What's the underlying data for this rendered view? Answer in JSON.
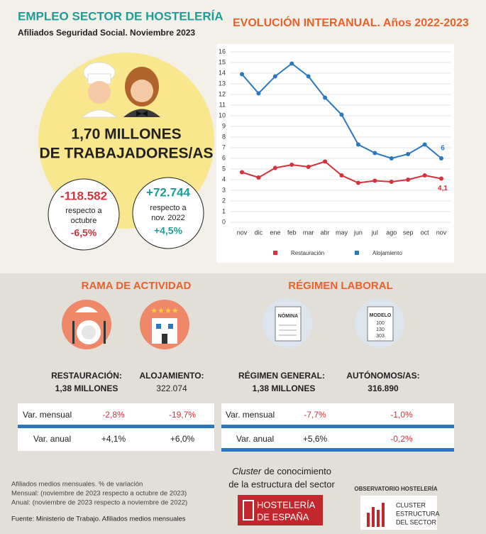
{
  "header": {
    "title": "EMPLEO SECTOR DE HOSTELERÍA",
    "subtitle": "Afiliados Seguridad Social. Noviembre 2023"
  },
  "highlight": {
    "line1": "1,70 MILLONES",
    "line2": "DE TRABAJADORES/AS",
    "monthly": {
      "value": "-118.582",
      "text1": "respecto a",
      "text2": "octubre",
      "pct": "-6,5%"
    },
    "annual": {
      "value": "+72.744",
      "text1": "respecto a",
      "text2": "nov. 2022",
      "pct": "+4,5%"
    }
  },
  "chart_data": {
    "type": "line",
    "title": "EVOLUCIÓN INTERANUAL. Años 2022-2023",
    "categories": [
      "nov",
      "dic",
      "ene",
      "feb",
      "mar",
      "abr",
      "may",
      "jun",
      "jul",
      "ago",
      "sep",
      "oct",
      "nov"
    ],
    "series": [
      {
        "name": "Restauración",
        "color": "#d5323c",
        "values": [
          4.7,
          4.2,
          5.1,
          5.4,
          5.2,
          5.7,
          4.4,
          3.7,
          3.9,
          3.8,
          4.0,
          4.4,
          4.1
        ],
        "value_labels": [
          null,
          null,
          null,
          null,
          null,
          null,
          null,
          null,
          null,
          null,
          null,
          null,
          "4,1"
        ]
      },
      {
        "name": "Alojamiento",
        "color": "#2c78be",
        "values": [
          13.9,
          12.1,
          13.7,
          14.9,
          13.7,
          11.7,
          10.1,
          7.3,
          6.5,
          6.0,
          6.4,
          7.3,
          6.0
        ],
        "value_labels": [
          null,
          null,
          null,
          null,
          null,
          null,
          null,
          null,
          null,
          null,
          null,
          null,
          "6"
        ]
      }
    ],
    "ylim": [
      0,
      16
    ],
    "yticks": [
      0,
      1,
      2,
      3,
      4,
      5,
      6,
      7,
      8,
      9,
      10,
      11,
      12,
      13,
      14,
      15,
      16
    ],
    "grid": true
  },
  "rama": {
    "title": "RAMA DE ACTIVIDAD",
    "restauracion": {
      "label": "RESTAURACIÓN:",
      "value": "1,38 MILLONES"
    },
    "alojamiento": {
      "label": "ALOJAMIENTO:",
      "value": "322.074"
    },
    "rows": [
      [
        "Var. mensual",
        "-2,8%",
        "-19,7%"
      ],
      [
        "Var. anual",
        "+4,1%",
        "+6,0%"
      ]
    ]
  },
  "regimen": {
    "title": "RÉGIMEN LABORAL",
    "icon1": "NÓMINA",
    "icon2": [
      "MODELO",
      "100",
      "130",
      "303"
    ],
    "general": {
      "label": "RÉGIMEN GENERAL:",
      "value": "1,38 MILLONES"
    },
    "autonomos": {
      "label": "AUTÓNOMOS/AS:",
      "value": "316.890"
    },
    "rows": [
      [
        "Var. mensual",
        "-7,7%",
        "-1,0%"
      ],
      [
        "Var. anual",
        "+5,6%",
        "-0,2%"
      ]
    ]
  },
  "notes": [
    "Afiliados medios mensuales. % de variación",
    "Mensual: (noviembre de 2023 respecto a octubre de 2023)",
    "Anual: (noviembre de 2023 respecto a noviembre de 2022)"
  ],
  "source": "Fuente: Ministerio de Trabajo. Afiliados medios mensuales",
  "cluster": {
    "italic": "Cluster",
    "rest": "de conocimiento",
    "line2": "de la estructura del sector"
  },
  "logos": {
    "hosteleria": [
      "HOSTELERÍA",
      "DE ESPAÑA"
    ],
    "observatorio": "OBSERVATORIO HOSTELERÍA",
    "cluster": [
      "CLUSTER",
      "ESTRUCTURA",
      "DEL SECTOR"
    ]
  }
}
